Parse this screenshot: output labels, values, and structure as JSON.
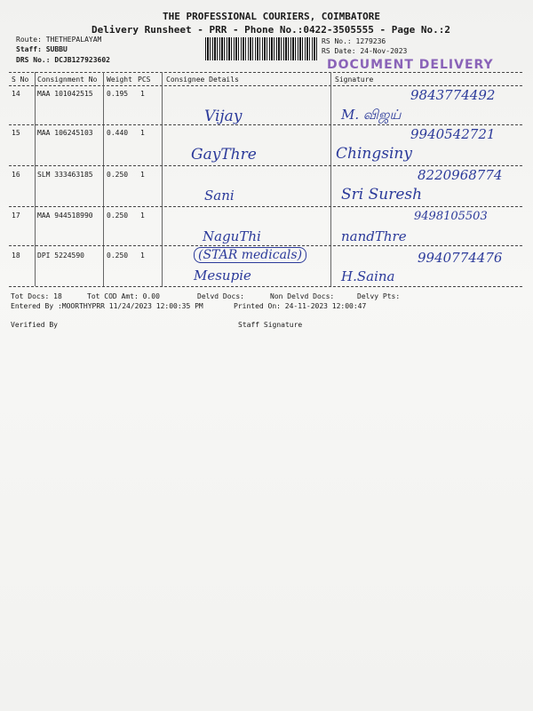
{
  "header": {
    "company": "THE PROFESSIONAL COURIERS, COIMBATORE",
    "subtitle": "Delivery Runsheet - PRR - Phone No.:0422-3505555 - Page No.:2",
    "route": "Route: THETHEPALAYAM",
    "staff": "Staff: SUBBU",
    "drs": "DRS No.: DCJB127923602",
    "rs_no": "RS No.: 1279236",
    "rs_date": "RS Date: 24-Nov-2023",
    "stamp": "DOCUMENT DELIVERY"
  },
  "table": {
    "columns": [
      "S No",
      "Consignment No",
      "Weight",
      "PCS",
      "Consignee Details",
      "Signature"
    ],
    "rows": [
      {
        "sno": "14",
        "cons": "MAA 101042515",
        "weight": "0.195",
        "pcs": "1"
      },
      {
        "sno": "15",
        "cons": "MAA 106245103",
        "weight": "0.440",
        "pcs": "1"
      },
      {
        "sno": "16",
        "cons": "SLM 333463185",
        "weight": "0.250",
        "pcs": "1"
      },
      {
        "sno": "17",
        "cons": "MAA 944518990",
        "weight": "0.250",
        "pcs": "1"
      },
      {
        "sno": "18",
        "cons": "DPI 5224590",
        "weight": "0.250",
        "pcs": "1"
      }
    ]
  },
  "handwriting": [
    "9843774492",
    "Vijay",
    "M. விஜய்",
    "9940542721",
    "GayThre",
    "Chingsiny",
    "8220968774",
    "Sani",
    "Sri Suresh",
    "9498105503",
    "NaguThi",
    "(STAR medicals)",
    "Mesupie",
    "nandThre",
    "9940774476",
    "H.Saina"
  ],
  "footer": {
    "tot_docs": "Tot Docs:  18",
    "tot_cod": "Tot COD Amt:    0.00",
    "delvd": "Delvd Docs:",
    "non_delvd": "Non Delvd Docs:",
    "delvy_pts": "Delvy Pts:",
    "entered_by": "Entered By :MOORTHYPRR 11/24/2023 12:00:35 PM",
    "printed_on": "Printed On: 24-11-2023 12:00:47",
    "verified_by": "Verified By",
    "staff_signature": "Staff Signature"
  }
}
